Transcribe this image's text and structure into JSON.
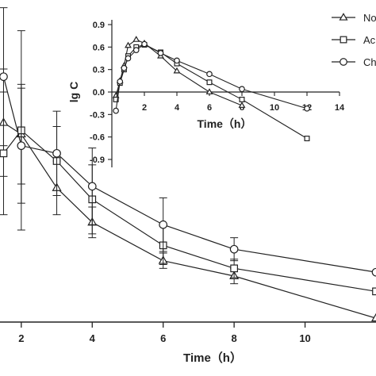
{
  "chart_data": [
    {
      "type": "line",
      "xlabel": "Time（h）",
      "ylabel": "",
      "xlim": [
        1.4,
        12.0
      ],
      "ylim": [
        0.35,
        4.55
      ],
      "xticks": [
        "2",
        "4",
        "6",
        "8",
        "10"
      ],
      "series": [
        {
          "name": "No",
          "marker": "triangle",
          "x": [
            1.5,
            2,
            3,
            4,
            6,
            8,
            12
          ],
          "y": [
            2.95,
            2.8,
            2.1,
            1.65,
            1.15,
            0.95,
            0.4
          ],
          "err": [
            0.7,
            0.65,
            0.35,
            0.2,
            0.1,
            0.1,
            0.0
          ]
        },
        {
          "name": "Ac",
          "marker": "square",
          "x": [
            1.5,
            2,
            3,
            4,
            6,
            8,
            12
          ],
          "y": [
            2.55,
            2.85,
            2.45,
            1.95,
            1.35,
            1.05,
            0.75
          ],
          "err": [
            0.8,
            1.3,
            0.45,
            0.45,
            0.25,
            0.12,
            0.0
          ]
        },
        {
          "name": "Ch",
          "marker": "circle",
          "x": [
            1.5,
            2,
            3,
            4,
            6,
            8,
            12
          ],
          "y": [
            3.55,
            2.65,
            2.55,
            2.12,
            1.62,
            1.3,
            1.0
          ],
          "err": [
            0.9,
            0.75,
            0.55,
            0.5,
            0.35,
            0.15,
            0.0
          ]
        }
      ]
    },
    {
      "type": "line",
      "xlabel": "Time（h）",
      "ylabel": "lg C",
      "xlim": [
        0,
        14
      ],
      "ylim": [
        -1.05,
        1.0
      ],
      "xticks": [
        "2",
        "4",
        "6",
        "8",
        "10",
        "12",
        "14"
      ],
      "yticks": [
        "0.9",
        "0.6",
        "0.3",
        "0.0",
        "-0.3",
        "-0.6",
        "-0.9"
      ],
      "series": [
        {
          "name": "No",
          "marker": "triangle",
          "x": [
            0.25,
            0.5,
            0.75,
            1,
            1.5,
            2,
            3,
            4,
            6,
            8
          ],
          "y": [
            -0.05,
            0.15,
            0.35,
            0.62,
            0.7,
            0.65,
            0.48,
            0.28,
            0.0,
            -0.18
          ]
        },
        {
          "name": "Ac",
          "marker": "square",
          "x": [
            0.25,
            0.5,
            0.75,
            1,
            1.5,
            2,
            3,
            4,
            6,
            8,
            12
          ],
          "y": [
            -0.1,
            0.12,
            0.3,
            0.48,
            0.6,
            0.63,
            0.53,
            0.38,
            0.13,
            -0.1,
            -0.62
          ]
        },
        {
          "name": "Ch",
          "marker": "circle",
          "x": [
            0.25,
            0.5,
            0.75,
            1,
            1.5,
            2,
            3,
            4,
            6,
            8,
            12
          ],
          "y": [
            -0.25,
            0.14,
            0.32,
            0.45,
            0.56,
            0.64,
            0.52,
            0.42,
            0.24,
            0.04,
            -0.22
          ]
        }
      ]
    }
  ],
  "legend": [
    {
      "label": "No",
      "marker": "triangle"
    },
    {
      "label": "Ac",
      "marker": "square"
    },
    {
      "label": "Ch",
      "marker": "circle"
    }
  ]
}
